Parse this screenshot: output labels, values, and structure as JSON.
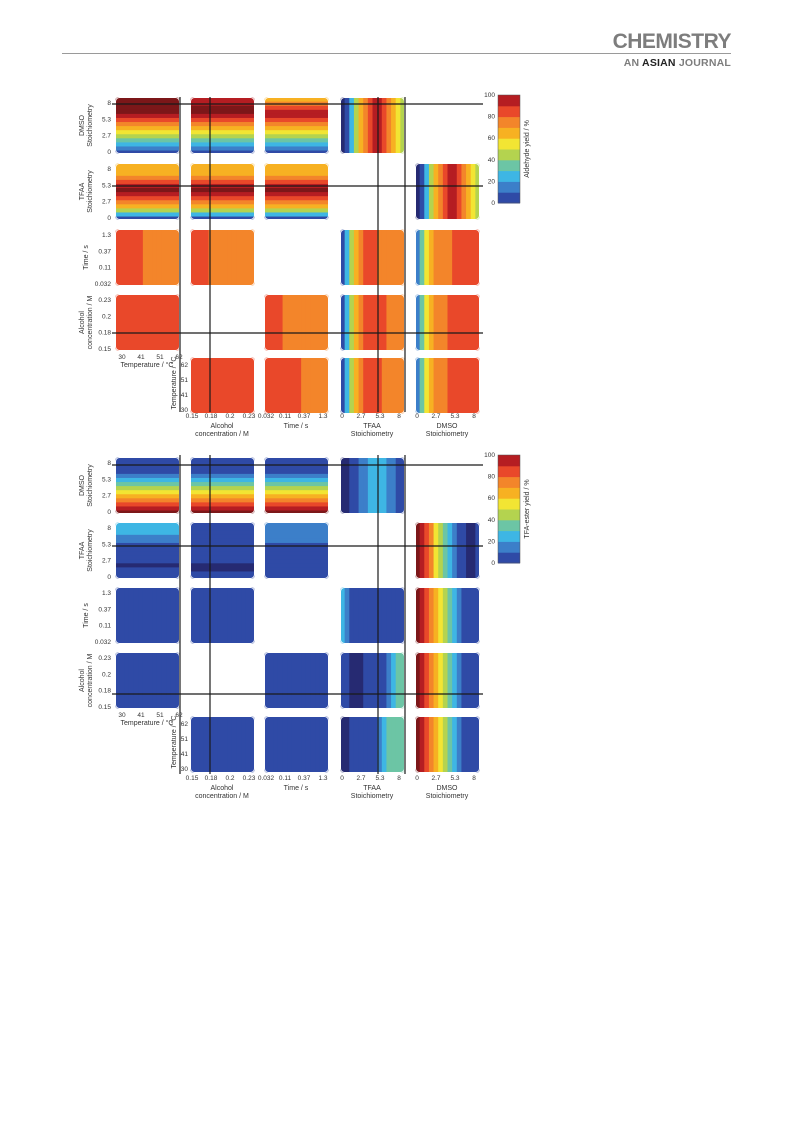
{
  "header": {
    "journal_top": "CHEMISTRY",
    "journal_prefix": "AN",
    "journal_accent": "ASIAN",
    "journal_suffix": "JOURNAL"
  },
  "colors": {
    "palette": [
      "#262a72",
      "#2f4aa6",
      "#3c7fc9",
      "#3eb6e4",
      "#6cc5a5",
      "#b4d34f",
      "#f2e533",
      "#f7b122",
      "#f3852a",
      "#e9482a",
      "#b51d22",
      "#7c1719"
    ],
    "grid": "#1a1a1a"
  },
  "variables": [
    {
      "id": "T",
      "label": "Temperature / °C",
      "ticks": [
        "30",
        "41",
        "51",
        "62"
      ]
    },
    {
      "id": "C",
      "label1": "Alcohol",
      "label2": "concentration / M",
      "ticks": [
        "0.15",
        "0.18",
        "0.2",
        "0.23"
      ]
    },
    {
      "id": "t",
      "label": "Time / s",
      "ticks": [
        "0.032",
        "0.11",
        "0.37",
        "1.3"
      ]
    },
    {
      "id": "TF",
      "label1": "TFAA",
      "label2": "Stoichiometry",
      "ticks": [
        "0",
        "2.7",
        "5.3",
        "8"
      ]
    },
    {
      "id": "D",
      "label1": "DMSO",
      "label2": "Stoichiometry",
      "ticks": [
        "0",
        "2.7",
        "5.3",
        "8"
      ]
    }
  ],
  "chart_data": [
    {
      "type": "heatmap",
      "title": "",
      "colorbar_label": "Aldehyde yield / %",
      "colorbar_ticks": [
        "0",
        "20",
        "40",
        "60",
        "80",
        "100"
      ],
      "zlim": [
        0,
        100
      ],
      "x_variables": [
        "Alcohol concentration / M",
        "Time / s",
        "TFAA Stoichiometry",
        "DMSO Stoichiometry"
      ],
      "y_variables": [
        "DMSO Stoichiometry",
        "TFAA Stoichiometry",
        "Time / s",
        "Alcohol concentration / M",
        "Temperature / °C"
      ],
      "panels": [
        {
          "row": "DMSO",
          "col": "Temperature",
          "level_map": [
            1,
            2,
            3,
            4,
            5,
            6,
            7,
            8,
            9,
            10,
            11,
            11,
            11,
            11
          ]
        },
        {
          "row": "DMSO",
          "col": "Alcohol concentration",
          "level_map": [
            1,
            2,
            3,
            4,
            5,
            6,
            7,
            8,
            9,
            10,
            11,
            11,
            10,
            10
          ]
        },
        {
          "row": "DMSO",
          "col": "Time",
          "level_map": [
            1,
            2,
            3,
            4,
            5,
            6,
            7,
            8,
            9,
            10,
            10,
            9,
            8,
            7
          ]
        },
        {
          "row": "DMSO",
          "col": "TFAA",
          "level_map": [
            0,
            1,
            3,
            5,
            7,
            8,
            9,
            10,
            10,
            9,
            8,
            7,
            6,
            5
          ]
        },
        {
          "row": "TFAA",
          "col": "Temperature",
          "level_map": [
            1,
            3,
            5,
            7,
            8,
            9,
            10,
            11,
            10,
            9,
            8,
            7,
            7,
            7
          ]
        },
        {
          "row": "TFAA",
          "col": "Alcohol concentration",
          "level_map": [
            1,
            3,
            5,
            7,
            8,
            9,
            10,
            11,
            10,
            9,
            8,
            7,
            7,
            7
          ]
        },
        {
          "row": "TFAA",
          "col": "Time",
          "level_map": [
            1,
            3,
            5,
            7,
            8,
            9,
            10,
            11,
            10,
            9,
            8,
            7,
            7,
            7
          ]
        },
        {
          "row": "TFAA",
          "col": "DMSO",
          "level_map": [
            0,
            1,
            3,
            5,
            7,
            8,
            9,
            10,
            10,
            9,
            8,
            7,
            6,
            5
          ]
        },
        {
          "row": "Time",
          "col": "Temperature",
          "level_map": [
            9,
            9,
            9,
            9,
            9,
            9,
            8,
            8,
            8,
            8,
            8,
            8,
            8,
            8
          ]
        },
        {
          "row": "Time",
          "col": "Alcohol concentration",
          "level_map": [
            9,
            9,
            9,
            9,
            8,
            8,
            8,
            8,
            8,
            8,
            8,
            8,
            8,
            8
          ]
        },
        {
          "row": "Time",
          "col": "TFAA",
          "level_map": [
            1,
            3,
            5,
            7,
            8,
            9,
            9,
            9,
            8,
            8,
            8,
            8,
            8,
            8
          ]
        },
        {
          "row": "Time",
          "col": "DMSO",
          "level_map": [
            2,
            4,
            6,
            7,
            8,
            8,
            8,
            8,
            9,
            9,
            9,
            9,
            9,
            9
          ]
        },
        {
          "row": "Alcohol concentration",
          "col": "Temperature",
          "level_map": [
            9,
            9,
            9,
            9,
            9,
            9,
            9,
            9,
            9,
            9,
            9,
            9,
            9,
            9
          ]
        },
        {
          "row": "Alcohol concentration",
          "col": "Time",
          "level_map": [
            9,
            9,
            9,
            9,
            8,
            8,
            8,
            8,
            8,
            8,
            8,
            8,
            8,
            8
          ]
        },
        {
          "row": "Alcohol concentration",
          "col": "TFAA",
          "level_map": [
            1,
            3,
            5,
            7,
            8,
            9,
            9,
            9,
            9,
            9,
            8,
            8,
            8,
            8
          ]
        },
        {
          "row": "Alcohol concentration",
          "col": "DMSO",
          "level_map": [
            2,
            4,
            6,
            7,
            8,
            8,
            8,
            9,
            9,
            9,
            9,
            9,
            9,
            9
          ]
        },
        {
          "row": "Temperature",
          "col": "Alcohol concentration",
          "level_map": [
            9,
            9,
            9,
            9,
            9,
            9,
            9,
            9,
            9,
            9,
            9,
            9,
            9,
            9
          ]
        },
        {
          "row": "Temperature",
          "col": "Time",
          "level_map": [
            9,
            9,
            9,
            9,
            9,
            9,
            9,
            9,
            8,
            8,
            8,
            8,
            8,
            8
          ]
        },
        {
          "row": "Temperature",
          "col": "TFAA",
          "level_map": [
            1,
            3,
            5,
            7,
            8,
            9,
            9,
            9,
            9,
            8,
            8,
            8,
            8,
            8
          ]
        },
        {
          "row": "Temperature",
          "col": "DMSO",
          "level_map": [
            2,
            4,
            6,
            7,
            8,
            8,
            8,
            9,
            9,
            9,
            9,
            9,
            9,
            9
          ]
        }
      ]
    },
    {
      "type": "heatmap",
      "title": "",
      "colorbar_label": "TFA-ester yield / %",
      "colorbar_ticks": [
        "0",
        "20",
        "40",
        "60",
        "80",
        "100"
      ],
      "zlim": [
        0,
        100
      ],
      "x_variables": [
        "Alcohol concentration / M",
        "Time / s",
        "TFAA Stoichiometry",
        "DMSO Stoichiometry"
      ],
      "y_variables": [
        "DMSO Stoichiometry",
        "TFAA Stoichiometry",
        "Time / s",
        "Alcohol concentration / M",
        "Temperature / °C"
      ],
      "panels": [
        {
          "row": "DMSO",
          "col": "Temperature",
          "level_map": [
            11,
            10,
            9,
            8,
            7,
            6,
            5,
            4,
            3,
            2,
            1,
            1,
            1,
            1
          ]
        },
        {
          "row": "DMSO",
          "col": "Alcohol concentration",
          "level_map": [
            11,
            10,
            9,
            8,
            7,
            6,
            5,
            4,
            3,
            2,
            1,
            1,
            1,
            1
          ]
        },
        {
          "row": "DMSO",
          "col": "Time",
          "level_map": [
            11,
            10,
            9,
            8,
            7,
            6,
            5,
            4,
            3,
            2,
            1,
            1,
            1,
            1
          ]
        },
        {
          "row": "DMSO",
          "col": "TFAA",
          "level_map": [
            0,
            0,
            1,
            1,
            2,
            2,
            3,
            3,
            3,
            3,
            2,
            2,
            1,
            1
          ]
        },
        {
          "row": "TFAA",
          "col": "Temperature",
          "level_map": [
            1,
            1,
            1,
            0,
            1,
            1,
            1,
            1,
            1,
            2,
            2,
            3,
            3,
            3
          ]
        },
        {
          "row": "TFAA",
          "col": "Alcohol concentration",
          "level_map": [
            1,
            1,
            0,
            0,
            1,
            1,
            1,
            1,
            1,
            1,
            1,
            1,
            1,
            1
          ]
        },
        {
          "row": "TFAA",
          "col": "Time",
          "level_map": [
            1,
            1,
            1,
            1,
            1,
            1,
            1,
            1,
            1,
            2,
            2,
            2,
            2,
            2
          ]
        },
        {
          "row": "TFAA",
          "col": "DMSO",
          "level_map": [
            11,
            10,
            9,
            8,
            6,
            5,
            4,
            3,
            2,
            1,
            1,
            0,
            0,
            1
          ]
        },
        {
          "row": "Time",
          "col": "Temperature",
          "level_map": [
            1,
            1,
            1,
            1,
            1,
            1,
            1,
            1,
            1,
            1,
            1,
            1,
            1,
            1
          ]
        },
        {
          "row": "Time",
          "col": "Alcohol concentration",
          "level_map": [
            1,
            1,
            1,
            1,
            1,
            1,
            1,
            1,
            1,
            1,
            1,
            1,
            1,
            1
          ]
        },
        {
          "row": "Time",
          "col": "TFAA",
          "level_map": [
            3,
            2,
            1,
            1,
            1,
            1,
            1,
            1,
            1,
            1,
            1,
            1,
            1,
            1
          ]
        },
        {
          "row": "Time",
          "col": "DMSO",
          "level_map": [
            11,
            10,
            9,
            8,
            7,
            6,
            5,
            4,
            3,
            2,
            1,
            1,
            1,
            1
          ]
        },
        {
          "row": "Alcohol concentration",
          "col": "Temperature",
          "level_map": [
            1,
            1,
            1,
            1,
            1,
            1,
            1,
            1,
            1,
            1,
            1,
            1,
            1,
            1
          ]
        },
        {
          "row": "Alcohol concentration",
          "col": "Time",
          "level_map": [
            1,
            1,
            1,
            1,
            1,
            1,
            1,
            1,
            1,
            1,
            1,
            1,
            1,
            1
          ]
        },
        {
          "row": "Alcohol concentration",
          "col": "TFAA",
          "level_map": [
            1,
            1,
            0,
            0,
            0,
            1,
            1,
            1,
            1,
            1,
            2,
            3,
            4,
            4
          ]
        },
        {
          "row": "Alcohol concentration",
          "col": "DMSO",
          "level_map": [
            11,
            10,
            9,
            8,
            7,
            6,
            5,
            4,
            3,
            2,
            1,
            1,
            1,
            1
          ]
        },
        {
          "row": "Temperature",
          "col": "Alcohol concentration",
          "level_map": [
            1,
            1,
            1,
            1,
            1,
            1,
            1,
            1,
            1,
            1,
            1,
            1,
            1,
            1
          ]
        },
        {
          "row": "Temperature",
          "col": "Time",
          "level_map": [
            1,
            1,
            1,
            1,
            1,
            1,
            1,
            1,
            1,
            1,
            1,
            1,
            1,
            1
          ]
        },
        {
          "row": "Temperature",
          "col": "TFAA",
          "level_map": [
            0,
            0,
            1,
            1,
            1,
            1,
            1,
            1,
            2,
            3,
            4,
            4,
            4,
            4
          ]
        },
        {
          "row": "Temperature",
          "col": "DMSO",
          "level_map": [
            11,
            10,
            9,
            8,
            7,
            6,
            5,
            4,
            3,
            2,
            1,
            1,
            1,
            1
          ]
        }
      ]
    }
  ]
}
